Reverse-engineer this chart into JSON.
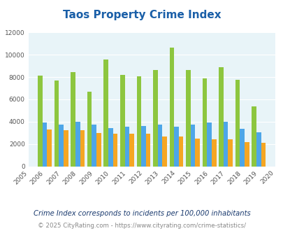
{
  "title": "Taos Property Crime Index",
  "years": [
    2005,
    2006,
    2007,
    2008,
    2009,
    2010,
    2011,
    2012,
    2013,
    2014,
    2015,
    2016,
    2017,
    2018,
    2019,
    2020
  ],
  "taos": [
    null,
    8100,
    7700,
    8450,
    6700,
    9550,
    8200,
    8050,
    8650,
    10650,
    8600,
    7900,
    8900,
    7750,
    5350,
    null
  ],
  "new_mexico": [
    null,
    3950,
    3750,
    3975,
    3750,
    3400,
    3550,
    3625,
    3750,
    3550,
    3725,
    3950,
    3975,
    3375,
    3050,
    null
  ],
  "national": [
    null,
    3300,
    3250,
    3225,
    3000,
    2950,
    2950,
    2900,
    2700,
    2650,
    2500,
    2450,
    2400,
    2200,
    2100,
    null
  ],
  "taos_color": "#8dc63f",
  "nm_color": "#4da6e8",
  "nat_color": "#f5a623",
  "bg_color": "#e8f4f8",
  "title_color": "#1a5fa8",
  "grid_color": "#ffffff",
  "ylim": [
    0,
    12000
  ],
  "yticks": [
    0,
    2000,
    4000,
    6000,
    8000,
    10000,
    12000
  ],
  "footnote1": "Crime Index corresponds to incidents per 100,000 inhabitants",
  "footnote2": "© 2025 CityRating.com - https://www.cityrating.com/crime-statistics/",
  "footnote1_color": "#1a3a6e",
  "footnote2_color": "#888888",
  "bar_width": 0.28
}
